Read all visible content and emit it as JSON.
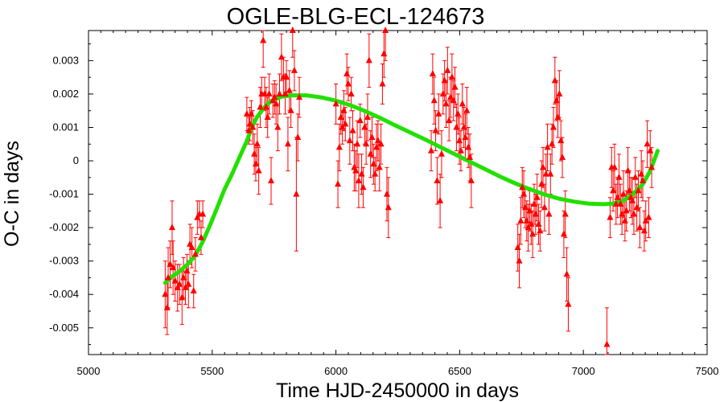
{
  "chart_data": {
    "type": "scatter",
    "title": "OGLE-BLG-ECL-124673",
    "xlabel": "Time HJD-2450000 in days",
    "ylabel": "O-C in days",
    "xlim": [
      5000,
      7500
    ],
    "ylim": [
      -0.0058,
      0.0039
    ],
    "xticks": [
      5000,
      5500,
      6000,
      6500,
      7000,
      7500
    ],
    "xtick_labels": [
      "5000",
      "5500",
      "6000",
      "6500",
      "7000",
      "7500"
    ],
    "yticks": [
      -0.005,
      -0.004,
      -0.003,
      -0.002,
      -0.001,
      0,
      0.001,
      0.002,
      0.003
    ],
    "ytick_labels": [
      "-0.005",
      "-0.004",
      "-0.003",
      "-0.002",
      "-0.001",
      "0",
      "0.001",
      "0.002",
      "0.003"
    ],
    "grid": false,
    "colors": {
      "points": "#ff0000",
      "fit": "#22e000"
    },
    "series": [
      {
        "type": "scatter",
        "marker": "triangle",
        "error_bars": true,
        "points": [
          [
            5310,
            -0.004,
            0.001
          ],
          [
            5318,
            -0.0044,
            0.0008
          ],
          [
            5322,
            -0.0035,
            0.0009
          ],
          [
            5330,
            -0.0031,
            0.0007
          ],
          [
            5338,
            -0.002,
            0.0008
          ],
          [
            5342,
            -0.0032,
            0.0008
          ],
          [
            5350,
            -0.0036,
            0.0006
          ],
          [
            5360,
            -0.0038,
            0.0007
          ],
          [
            5368,
            -0.0037,
            0.0006
          ],
          [
            5378,
            -0.0041,
            0.0008
          ],
          [
            5384,
            -0.0035,
            0.0006
          ],
          [
            5392,
            -0.0038,
            0.0005
          ],
          [
            5398,
            -0.0033,
            0.0005
          ],
          [
            5404,
            -0.0037,
            0.0007
          ],
          [
            5410,
            -0.0025,
            0.0006
          ],
          [
            5418,
            -0.0026,
            0.0006
          ],
          [
            5425,
            -0.0039,
            0.0005
          ],
          [
            5432,
            -0.0028,
            0.0005
          ],
          [
            5440,
            -0.0017,
            0.0005
          ],
          [
            5448,
            -0.0016,
            0.0004
          ],
          [
            5455,
            -0.0023,
            0.0005
          ],
          [
            5462,
            -0.0016,
            0.0004
          ],
          [
            5640,
            0.0014,
            0.0005
          ],
          [
            5648,
            0.0009,
            0.0004
          ],
          [
            5652,
            0.0011,
            0.0005
          ],
          [
            5658,
            0.0014,
            0.0004
          ],
          [
            5664,
            0.001,
            0.0005
          ],
          [
            5670,
            0.0002,
            0.0006
          ],
          [
            5676,
            -0.0001,
            0.0005
          ],
          [
            5682,
            0.0005,
            0.0006
          ],
          [
            5688,
            -0.0003,
            0.0007
          ],
          [
            5694,
            0.0016,
            0.0006
          ],
          [
            5700,
            0.002,
            0.0005
          ],
          [
            5706,
            0.0036,
            0.0008
          ],
          [
            5712,
            0.002,
            0.0005
          ],
          [
            5718,
            0.0016,
            0.0006
          ],
          [
            5724,
            0.0013,
            0.0006
          ],
          [
            5730,
            0.002,
            0.0006
          ],
          [
            5738,
            -0.0006,
            0.0007
          ],
          [
            5745,
            0.0018,
            0.0005
          ],
          [
            5752,
            0.0019,
            0.0005
          ],
          [
            5758,
            0.0017,
            0.0006
          ],
          [
            5765,
            0.001,
            0.0007
          ],
          [
            5772,
            0.002,
            0.0006
          ],
          [
            5780,
            0.0031,
            0.0007
          ],
          [
            5788,
            0.0025,
            0.0006
          ],
          [
            5795,
            0.002,
            0.0006
          ],
          [
            5800,
            0.0025,
            0.0005
          ],
          [
            5806,
            0.0005,
            0.0008
          ],
          [
            5812,
            0.0021,
            0.0006
          ],
          [
            5818,
            0.0015,
            0.0005
          ],
          [
            5825,
            0.0039,
            0.0008
          ],
          [
            5832,
            0.0027,
            0.0006
          ],
          [
            5840,
            -0.001,
            0.0017
          ],
          [
            5846,
            0.0007,
            0.0007
          ],
          [
            5852,
            0.0019,
            0.0006
          ],
          [
            6000,
            0.0017,
            0.0006
          ],
          [
            6008,
            -0.0007,
            0.0007
          ],
          [
            6014,
            0.0004,
            0.0007
          ],
          [
            6020,
            0.0013,
            0.0005
          ],
          [
            6026,
            0.001,
            0.0005
          ],
          [
            6032,
            0.0015,
            0.0006
          ],
          [
            6038,
            0.0011,
            0.0005
          ],
          [
            6044,
            0.0026,
            0.0006
          ],
          [
            6050,
            0.0023,
            0.0005
          ],
          [
            6056,
            0.0006,
            0.0007
          ],
          [
            6062,
            0.002,
            0.0005
          ],
          [
            6068,
            0.0009,
            0.0006
          ],
          [
            6074,
            -0.0002,
            0.0007
          ],
          [
            6080,
            -0.0003,
            0.0006
          ],
          [
            6086,
            0.0005,
            0.0007
          ],
          [
            6092,
            -0.0006,
            0.0008
          ],
          [
            6098,
            0.0012,
            0.0005
          ],
          [
            6104,
            -0.0004,
            0.0006
          ],
          [
            6110,
            -0.0008,
            0.0006
          ],
          [
            6116,
            0.001,
            0.0005
          ],
          [
            6122,
            0.0005,
            0.0006
          ],
          [
            6128,
            0.0013,
            0.0007
          ],
          [
            6134,
            0.003,
            0.0008
          ],
          [
            6140,
            0.0002,
            0.0007
          ],
          [
            6146,
            0.0007,
            0.0006
          ],
          [
            6152,
            -0.0001,
            0.0006
          ],
          [
            6158,
            -0.0004,
            0.0005
          ],
          [
            6164,
            0.0004,
            0.0007
          ],
          [
            6170,
            0.0006,
            0.0006
          ],
          [
            6176,
            -0.0002,
            0.0007
          ],
          [
            6182,
            0.0005,
            0.0006
          ],
          [
            6188,
            0.0023,
            0.0006
          ],
          [
            6194,
            0.0032,
            0.0007
          ],
          [
            6200,
            0.0039,
            0.0009
          ],
          [
            6206,
            -0.001,
            0.0008
          ],
          [
            6212,
            -0.0014,
            0.0009
          ],
          [
            6385,
            0.0003,
            0.0006
          ],
          [
            6391,
            0.0026,
            0.0006
          ],
          [
            6397,
            0.0018,
            0.0007
          ],
          [
            6403,
            0.0009,
            0.0006
          ],
          [
            6409,
            -0.0006,
            0.0007
          ],
          [
            6415,
            0.0014,
            0.0006
          ],
          [
            6421,
            -0.0012,
            0.0008
          ],
          [
            6427,
            0.0002,
            0.0007
          ],
          [
            6433,
            0.002,
            0.0006
          ],
          [
            6439,
            0.0024,
            0.0006
          ],
          [
            6445,
            0.0017,
            0.0007
          ],
          [
            6451,
            0.0027,
            0.0007
          ],
          [
            6457,
            0.0012,
            0.0006
          ],
          [
            6463,
            0.0019,
            0.0006
          ],
          [
            6469,
            0.0025,
            0.0007
          ],
          [
            6475,
            0.0018,
            0.0006
          ],
          [
            6481,
            0.0022,
            0.0006
          ],
          [
            6487,
            0.001,
            0.0007
          ],
          [
            6493,
            0.0014,
            0.0006
          ],
          [
            6499,
            0.0006,
            0.0007
          ],
          [
            6505,
            0.0003,
            0.0006
          ],
          [
            6511,
            0.0017,
            0.0006
          ],
          [
            6517,
            0.001,
            0.0006
          ],
          [
            6523,
            0.0007,
            0.0007
          ],
          [
            6529,
            0.0015,
            0.0007
          ],
          [
            6535,
            0.0004,
            0.0006
          ],
          [
            6541,
            0.0001,
            0.0007
          ],
          [
            6547,
            -0.0006,
            0.0008
          ],
          [
            6735,
            -0.0026,
            0.0007
          ],
          [
            6741,
            -0.003,
            0.0008
          ],
          [
            6747,
            -0.0018,
            0.0007
          ],
          [
            6753,
            -0.0008,
            0.0006
          ],
          [
            6759,
            -0.001,
            0.0007
          ],
          [
            6765,
            -0.0014,
            0.0006
          ],
          [
            6771,
            -0.0018,
            0.0006
          ],
          [
            6777,
            -0.002,
            0.0007
          ],
          [
            6783,
            -0.0015,
            0.0006
          ],
          [
            6789,
            -0.0019,
            0.0006
          ],
          [
            6795,
            -0.0022,
            0.0007
          ],
          [
            6801,
            -0.0013,
            0.0006
          ],
          [
            6807,
            -0.0016,
            0.0006
          ],
          [
            6813,
            -0.0011,
            0.0007
          ],
          [
            6819,
            -0.0019,
            0.0006
          ],
          [
            6825,
            -0.0021,
            0.0006
          ],
          [
            6831,
            -0.0007,
            0.0007
          ],
          [
            6837,
            -0.0002,
            0.0006
          ],
          [
            6843,
            -0.0014,
            0.0007
          ],
          [
            6849,
            -0.0004,
            0.0006
          ],
          [
            6855,
            0.0004,
            0.0007
          ],
          [
            6861,
            -0.0016,
            0.0006
          ],
          [
            6867,
            -0.0004,
            0.0006
          ],
          [
            6873,
            0.0005,
            0.0006
          ],
          [
            6879,
            0.001,
            0.0006
          ],
          [
            6885,
            0.0024,
            0.0007
          ],
          [
            6891,
            0.0018,
            0.0006
          ],
          [
            6897,
            0.0013,
            0.0006
          ],
          [
            6903,
            0.002,
            0.0007
          ],
          [
            6909,
            0.0006,
            0.0006
          ],
          [
            6915,
            0.0001,
            0.0006
          ],
          [
            6921,
            -0.0022,
            0.0007
          ],
          [
            6927,
            -0.0016,
            0.0007
          ],
          [
            6933,
            -0.0034,
            0.0008
          ],
          [
            6939,
            -0.0043,
            0.0008
          ],
          [
            7095,
            -0.0055,
            0.0011
          ],
          [
            7108,
            -0.0017,
            0.0006
          ],
          [
            7114,
            -0.0002,
            0.0006
          ],
          [
            7120,
            -0.0009,
            0.0006
          ],
          [
            7126,
            -0.0002,
            0.0007
          ],
          [
            7132,
            -0.0013,
            0.0006
          ],
          [
            7138,
            -0.0011,
            0.0006
          ],
          [
            7144,
            -0.0005,
            0.0007
          ],
          [
            7150,
            -0.0013,
            0.0006
          ],
          [
            7156,
            -0.0016,
            0.0006
          ],
          [
            7162,
            -0.001,
            0.0007
          ],
          [
            7168,
            -0.0018,
            0.0006
          ],
          [
            7174,
            -0.0015,
            0.0006
          ],
          [
            7180,
            -0.0003,
            0.0007
          ],
          [
            7186,
            -0.0009,
            0.0006
          ],
          [
            7192,
            -0.0011,
            0.0006
          ],
          [
            7198,
            -0.0012,
            0.0007
          ],
          [
            7204,
            -0.0016,
            0.0006
          ],
          [
            7210,
            -0.0005,
            0.0006
          ],
          [
            7216,
            -0.0014,
            0.0007
          ],
          [
            7222,
            -0.0009,
            0.0006
          ],
          [
            7228,
            -0.002,
            0.0006
          ],
          [
            7234,
            -0.0004,
            0.0007
          ],
          [
            7240,
            -0.0006,
            0.0006
          ],
          [
            7246,
            -0.0021,
            0.0006
          ],
          [
            7252,
            -0.0018,
            0.0006
          ],
          [
            7258,
            0.0005,
            0.0007
          ],
          [
            7264,
            -0.0017,
            0.0006
          ],
          [
            7270,
            0.0003,
            0.0006
          ],
          [
            7276,
            -0.0002,
            0.0006
          ]
        ]
      },
      {
        "type": "line",
        "points": [
          [
            5310,
            -0.00365
          ],
          [
            5340,
            -0.00345
          ],
          [
            5370,
            -0.0033
          ],
          [
            5400,
            -0.0031
          ],
          [
            5430,
            -0.00285
          ],
          [
            5460,
            -0.00245
          ],
          [
            5490,
            -0.00195
          ],
          [
            5520,
            -0.0014
          ],
          [
            5550,
            -0.00085
          ],
          [
            5580,
            -0.0004
          ],
          [
            5610,
            0.0001
          ],
          [
            5640,
            0.0006
          ],
          [
            5660,
            0.001
          ],
          [
            5680,
            0.0013
          ],
          [
            5710,
            0.0016
          ],
          [
            5740,
            0.0018
          ],
          [
            5780,
            0.00192
          ],
          [
            5820,
            0.00196
          ],
          [
            5880,
            0.00196
          ],
          [
            5940,
            0.0019
          ],
          [
            6000,
            0.0018
          ],
          [
            6060,
            0.00166
          ],
          [
            6120,
            0.00148
          ],
          [
            6180,
            0.00128
          ],
          [
            6240,
            0.00106
          ],
          [
            6300,
            0.00085
          ],
          [
            6360,
            0.00064
          ],
          [
            6420,
            0.00042
          ],
          [
            6480,
            0.0002
          ],
          [
            6540,
            -2e-05
          ],
          [
            6600,
            -0.00024
          ],
          [
            6660,
            -0.00046
          ],
          [
            6720,
            -0.00066
          ],
          [
            6780,
            -0.00084
          ],
          [
            6840,
            -0.001
          ],
          [
            6900,
            -0.00113
          ],
          [
            6960,
            -0.00122
          ],
          [
            7020,
            -0.00128
          ],
          [
            7080,
            -0.0013
          ],
          [
            7120,
            -0.00128
          ],
          [
            7160,
            -0.0012
          ],
          [
            7200,
            -0.001
          ],
          [
            7240,
            -0.0007
          ],
          [
            7270,
            -0.0003
          ],
          [
            7300,
            0.0003
          ]
        ]
      }
    ]
  }
}
